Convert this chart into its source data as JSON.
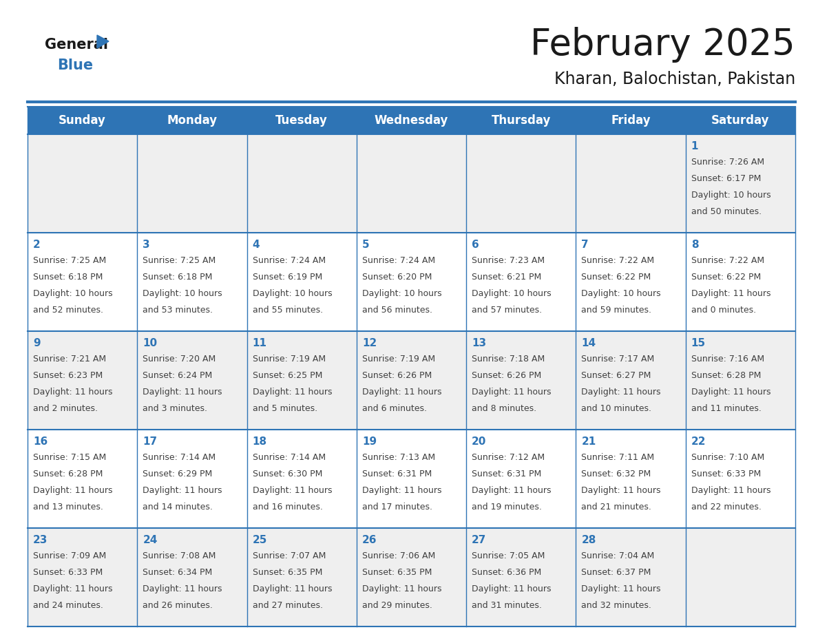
{
  "title": "February 2025",
  "subtitle": "Kharan, Balochistan, Pakistan",
  "header_bg": "#2E74B5",
  "header_text_color": "#FFFFFF",
  "day_names": [
    "Sunday",
    "Monday",
    "Tuesday",
    "Wednesday",
    "Thursday",
    "Friday",
    "Saturday"
  ],
  "cell_bg_even": "#EFEFEF",
  "cell_bg_odd": "#FFFFFF",
  "cell_border_color": "#2E74B5",
  "date_text_color": "#2E74B5",
  "info_text_color": "#404040",
  "logo_text_color": "#1A1A1A",
  "logo_blue_color": "#2E74B5",
  "title_color": "#1A1A1A",
  "subtitle_color": "#1A1A1A",
  "calendar": [
    [
      null,
      null,
      null,
      null,
      null,
      null,
      1
    ],
    [
      2,
      3,
      4,
      5,
      6,
      7,
      8
    ],
    [
      9,
      10,
      11,
      12,
      13,
      14,
      15
    ],
    [
      16,
      17,
      18,
      19,
      20,
      21,
      22
    ],
    [
      23,
      24,
      25,
      26,
      27,
      28,
      null
    ]
  ],
  "sunrise": {
    "1": "7:26 AM",
    "2": "7:25 AM",
    "3": "7:25 AM",
    "4": "7:24 AM",
    "5": "7:24 AM",
    "6": "7:23 AM",
    "7": "7:22 AM",
    "8": "7:22 AM",
    "9": "7:21 AM",
    "10": "7:20 AM",
    "11": "7:19 AM",
    "12": "7:19 AM",
    "13": "7:18 AM",
    "14": "7:17 AM",
    "15": "7:16 AM",
    "16": "7:15 AM",
    "17": "7:14 AM",
    "18": "7:14 AM",
    "19": "7:13 AM",
    "20": "7:12 AM",
    "21": "7:11 AM",
    "22": "7:10 AM",
    "23": "7:09 AM",
    "24": "7:08 AM",
    "25": "7:07 AM",
    "26": "7:06 AM",
    "27": "7:05 AM",
    "28": "7:04 AM"
  },
  "sunset": {
    "1": "6:17 PM",
    "2": "6:18 PM",
    "3": "6:18 PM",
    "4": "6:19 PM",
    "5": "6:20 PM",
    "6": "6:21 PM",
    "7": "6:22 PM",
    "8": "6:22 PM",
    "9": "6:23 PM",
    "10": "6:24 PM",
    "11": "6:25 PM",
    "12": "6:26 PM",
    "13": "6:26 PM",
    "14": "6:27 PM",
    "15": "6:28 PM",
    "16": "6:28 PM",
    "17": "6:29 PM",
    "18": "6:30 PM",
    "19": "6:31 PM",
    "20": "6:31 PM",
    "21": "6:32 PM",
    "22": "6:33 PM",
    "23": "6:33 PM",
    "24": "6:34 PM",
    "25": "6:35 PM",
    "26": "6:35 PM",
    "27": "6:36 PM",
    "28": "6:37 PM"
  },
  "daylight": {
    "1": "10 hours\nand 50 minutes.",
    "2": "10 hours\nand 52 minutes.",
    "3": "10 hours\nand 53 minutes.",
    "4": "10 hours\nand 55 minutes.",
    "5": "10 hours\nand 56 minutes.",
    "6": "10 hours\nand 57 minutes.",
    "7": "10 hours\nand 59 minutes.",
    "8": "11 hours\nand 0 minutes.",
    "9": "11 hours\nand 2 minutes.",
    "10": "11 hours\nand 3 minutes.",
    "11": "11 hours\nand 5 minutes.",
    "12": "11 hours\nand 6 minutes.",
    "13": "11 hours\nand 8 minutes.",
    "14": "11 hours\nand 10 minutes.",
    "15": "11 hours\nand 11 minutes.",
    "16": "11 hours\nand 13 minutes.",
    "17": "11 hours\nand 14 minutes.",
    "18": "11 hours\nand 16 minutes.",
    "19": "11 hours\nand 17 minutes.",
    "20": "11 hours\nand 19 minutes.",
    "21": "11 hours\nand 21 minutes.",
    "22": "11 hours\nand 22 minutes.",
    "23": "11 hours\nand 24 minutes.",
    "24": "11 hours\nand 26 minutes.",
    "25": "11 hours\nand 27 minutes.",
    "26": "11 hours\nand 29 minutes.",
    "27": "11 hours\nand 31 minutes.",
    "28": "11 hours\nand 32 minutes."
  }
}
